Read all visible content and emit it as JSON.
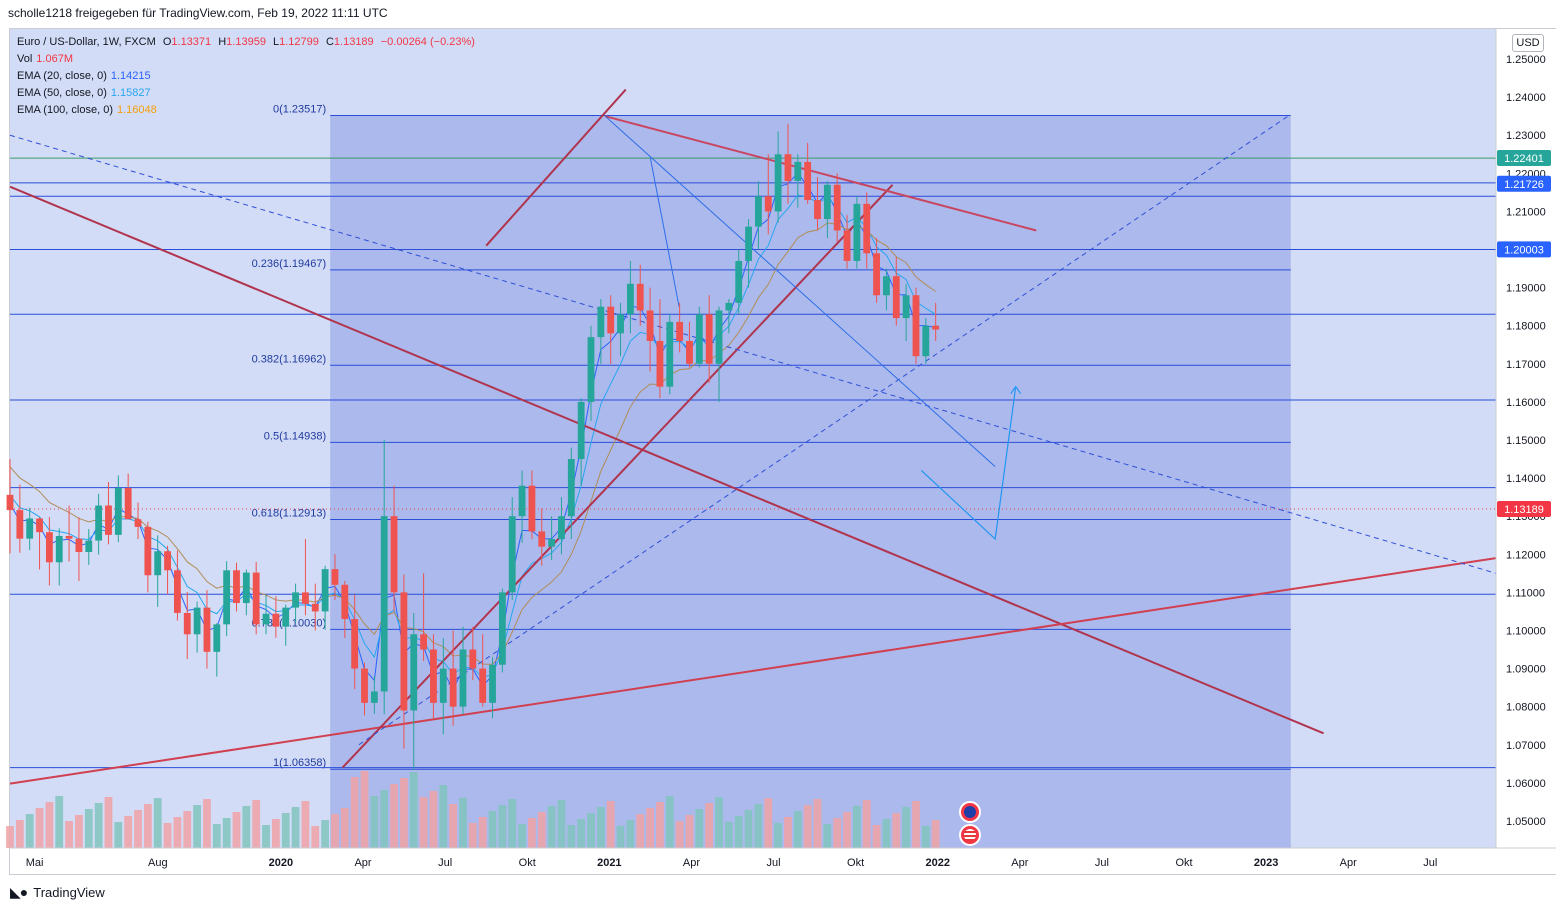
{
  "header": {
    "publisher_line": "scholle1218 freigegeben für TradingView.com, Feb 19, 2022 11:11 UTC"
  },
  "legend": {
    "symbol": "Euro / US-Dollar, 1W, FXCM",
    "ohlc": {
      "o_label": "O",
      "o": "1.13371",
      "h_label": "H",
      "h": "1.13959",
      "l_label": "L",
      "l": "1.12799",
      "c_label": "C",
      "c": "1.13189",
      "change": "−0.00264 (−0.23%)"
    },
    "vol_label": "Vol",
    "vol": "1.067M",
    "ema20_label": "EMA (20, close, 0)",
    "ema20": "1.14215",
    "ema50_label": "EMA (50, close, 0)",
    "ema50": "1.15827",
    "ema100_label": "EMA (100, close, 0)",
    "ema100": "1.16048"
  },
  "currency_button": "USD",
  "footer": {
    "brand": "TradingView"
  },
  "colors": {
    "up": "#26a69a",
    "down": "#ef5350",
    "ema20": "#2962ff",
    "ema50": "#26a6f0",
    "ema100": "#b08d57",
    "fib_box": "#5a6fd6",
    "trendline": "#b0344e",
    "hline": "#2a4ed8",
    "bg": "#d3dcf6",
    "price_label": "#f23645"
  },
  "icons": [
    "eu-flag-event-icon",
    "us-flag-event-icon"
  ],
  "chart_data": {
    "type": "candlestick",
    "timeframe": "1W",
    "y_axis": {
      "labels": [
        "1.25000",
        "1.24000",
        "1.23000",
        "1.22000",
        "1.21000",
        "1.20000",
        "1.19000",
        "1.18000",
        "1.17000",
        "1.16000",
        "1.15000",
        "1.14000",
        "1.13000",
        "1.12000",
        "1.11000",
        "1.10000",
        "1.09000",
        "1.08000",
        "1.07000",
        "1.06000",
        "1.05000"
      ],
      "range": [
        1.045,
        1.255
      ]
    },
    "x_axis": {
      "labels": [
        {
          "t": 0.6,
          "label": "Mai"
        },
        {
          "t": 3.6,
          "label": "Aug"
        },
        {
          "t": 6.6,
          "label": "2020",
          "bold": true
        },
        {
          "t": 8.6,
          "label": "Apr"
        },
        {
          "t": 10.6,
          "label": "Jul"
        },
        {
          "t": 12.6,
          "label": "Okt"
        },
        {
          "t": 14.6,
          "label": "2021",
          "bold": true
        },
        {
          "t": 16.6,
          "label": "Apr"
        },
        {
          "t": 18.6,
          "label": "Jul"
        },
        {
          "t": 20.6,
          "label": "Okt"
        },
        {
          "t": 22.6,
          "label": "2022",
          "bold": true
        },
        {
          "t": 24.6,
          "label": "Apr"
        },
        {
          "t": 26.6,
          "label": "Jul"
        },
        {
          "t": 28.6,
          "label": "Okt"
        },
        {
          "t": 30.6,
          "label": "2023",
          "bold": true
        },
        {
          "t": 32.6,
          "label": "Apr"
        },
        {
          "t": 34.6,
          "label": "Jul"
        }
      ],
      "t_range": [
        0,
        36.2
      ]
    },
    "price_badges": [
      {
        "price": 1.22401,
        "label": "1.22401",
        "color": "#26a69a"
      },
      {
        "price": 1.21726,
        "label": "1.21726",
        "color": "#2962ff"
      },
      {
        "price": 1.20003,
        "label": "1.20003",
        "color": "#2962ff"
      },
      {
        "price": 1.13189,
        "label": "1.13189",
        "color": "#f23645"
      }
    ],
    "fibonacci": {
      "t_start": 7.8,
      "t_end": 31.2,
      "levels": [
        {
          "price": 1.23517,
          "label": "0(1.23517)"
        },
        {
          "price": 1.19467,
          "label": "0.236(1.19467)"
        },
        {
          "price": 1.16962,
          "label": "0.382(1.16962)"
        },
        {
          "price": 1.14938,
          "label": "0.5(1.14938)"
        },
        {
          "price": 1.12913,
          "label": "0.618(1.12913)"
        },
        {
          "price": 1.1003,
          "label": "0.786(1.10030)"
        },
        {
          "price": 1.06358,
          "label": "1(1.06358)"
        }
      ]
    },
    "horizontal_lines": [
      1.2175,
      1.214,
      1.2,
      1.183,
      1.1605,
      1.1375,
      1.1095,
      1.064
    ],
    "green_line": 1.224,
    "trendlines": [
      {
        "t1": 0.0,
        "p1": 1.2165,
        "t2": 32.0,
        "p2": 1.073,
        "color": "#b0344e"
      },
      {
        "t1": 0.0,
        "p1": 1.0598,
        "t2": 36.2,
        "p2": 1.119,
        "color": "#d04050"
      },
      {
        "t1": 8.1,
        "p1": 1.064,
        "t2": 21.5,
        "p2": 1.217,
        "color": "#b0344e"
      },
      {
        "t1": 11.6,
        "p1": 1.201,
        "t2": 15.0,
        "p2": 1.242,
        "color": "#b0344e"
      },
      {
        "t1": 14.5,
        "p1": 1.235,
        "t2": 25.0,
        "p2": 1.205,
        "color": "#c84660"
      }
    ],
    "dashed_lines": [
      {
        "t1": 0.0,
        "p1": 1.23,
        "t2": 36.2,
        "p2": 1.115
      },
      {
        "t1": 8.5,
        "p1": 1.07,
        "t2": 31.2,
        "p2": 1.2355
      }
    ],
    "forecast_path": [
      [
        22.2,
        1.142
      ],
      [
        24.0,
        1.124
      ],
      [
        24.5,
        1.164
      ]
    ],
    "annotation_lines": [
      {
        "t1": 14.5,
        "p1": 1.235,
        "t2": 24.0,
        "p2": 1.143
      },
      {
        "t1": 15.6,
        "p1": 1.224,
        "t2": 16.3,
        "p2": 1.185
      }
    ],
    "candles": [
      {
        "t": 0.0,
        "o": 1.1356,
        "h": 1.145,
        "l": 1.1202,
        "c": 1.1316
      },
      {
        "t": 0.23,
        "o": 1.1316,
        "h": 1.1383,
        "l": 1.1204,
        "c": 1.1241
      },
      {
        "t": 0.46,
        "o": 1.1241,
        "h": 1.1322,
        "l": 1.1211,
        "c": 1.1294
      },
      {
        "t": 0.69,
        "o": 1.1294,
        "h": 1.1297,
        "l": 1.116,
        "c": 1.1258
      },
      {
        "t": 0.92,
        "o": 1.1258,
        "h": 1.1298,
        "l": 1.1118,
        "c": 1.1179
      },
      {
        "t": 1.15,
        "o": 1.1179,
        "h": 1.1268,
        "l": 1.1118,
        "c": 1.1248
      },
      {
        "t": 1.38,
        "o": 1.1248,
        "h": 1.1328,
        "l": 1.1181,
        "c": 1.1241
      },
      {
        "t": 1.61,
        "o": 1.1241,
        "h": 1.1297,
        "l": 1.113,
        "c": 1.1206
      },
      {
        "t": 1.84,
        "o": 1.1206,
        "h": 1.1266,
        "l": 1.1172,
        "c": 1.1236
      },
      {
        "t": 2.07,
        "o": 1.1236,
        "h": 1.1359,
        "l": 1.1199,
        "c": 1.1328
      },
      {
        "t": 2.3,
        "o": 1.1328,
        "h": 1.139,
        "l": 1.1226,
        "c": 1.1251
      },
      {
        "t": 2.53,
        "o": 1.1251,
        "h": 1.1407,
        "l": 1.1232,
        "c": 1.1374
      },
      {
        "t": 2.76,
        "o": 1.1374,
        "h": 1.1412,
        "l": 1.1295,
        "c": 1.1292
      },
      {
        "t": 2.99,
        "o": 1.1292,
        "h": 1.1336,
        "l": 1.124,
        "c": 1.1272
      },
      {
        "t": 3.22,
        "o": 1.1272,
        "h": 1.1286,
        "l": 1.11,
        "c": 1.1145
      },
      {
        "t": 3.45,
        "o": 1.1145,
        "h": 1.125,
        "l": 1.1062,
        "c": 1.1208
      },
      {
        "t": 3.68,
        "o": 1.1208,
        "h": 1.1222,
        "l": 1.1095,
        "c": 1.1158
      },
      {
        "t": 3.91,
        "o": 1.1158,
        "h": 1.121,
        "l": 1.1026,
        "c": 1.1046
      },
      {
        "t": 4.14,
        "o": 1.1046,
        "h": 1.1101,
        "l": 1.0925,
        "c": 1.099
      },
      {
        "t": 4.37,
        "o": 1.099,
        "h": 1.1076,
        "l": 1.0942,
        "c": 1.106
      },
      {
        "t": 4.6,
        "o": 1.106,
        "h": 1.1106,
        "l": 1.09,
        "c": 1.0944
      },
      {
        "t": 4.83,
        "o": 1.0944,
        "h": 1.1019,
        "l": 1.0879,
        "c": 1.1016
      },
      {
        "t": 5.06,
        "o": 1.1016,
        "h": 1.1182,
        "l": 1.0985,
        "c": 1.1158
      },
      {
        "t": 5.29,
        "o": 1.1158,
        "h": 1.1178,
        "l": 1.105,
        "c": 1.1072
      },
      {
        "t": 5.52,
        "o": 1.1072,
        "h": 1.116,
        "l": 1.104,
        "c": 1.1152
      },
      {
        "t": 5.75,
        "o": 1.1152,
        "h": 1.118,
        "l": 1.099,
        "c": 1.1016
      },
      {
        "t": 5.98,
        "o": 1.1016,
        "h": 1.1092,
        "l": 1.099,
        "c": 1.1044
      },
      {
        "t": 6.21,
        "o": 1.1044,
        "h": 1.109,
        "l": 1.0981,
        "c": 1.101
      },
      {
        "t": 6.44,
        "o": 1.101,
        "h": 1.1068,
        "l": 1.096,
        "c": 1.106
      },
      {
        "t": 6.67,
        "o": 1.106,
        "h": 1.1123,
        "l": 1.102,
        "c": 1.11
      },
      {
        "t": 6.9,
        "o": 1.11,
        "h": 1.124,
        "l": 1.104,
        "c": 1.107
      },
      {
        "t": 7.13,
        "o": 1.107,
        "h": 1.1123,
        "l": 1.1,
        "c": 1.105
      },
      {
        "t": 7.36,
        "o": 1.105,
        "h": 1.117,
        "l": 1.1002,
        "c": 1.1161
      },
      {
        "t": 7.59,
        "o": 1.1161,
        "h": 1.12,
        "l": 1.108,
        "c": 1.112
      },
      {
        "t": 7.82,
        "o": 1.112,
        "h": 1.113,
        "l": 1.098,
        "c": 1.103
      },
      {
        "t": 8.05,
        "o": 1.103,
        "h": 1.1094,
        "l": 1.0846,
        "c": 1.09
      },
      {
        "t": 8.28,
        "o": 1.09,
        "h": 1.0915,
        "l": 1.0777,
        "c": 1.081
      },
      {
        "t": 8.51,
        "o": 1.081,
        "h": 1.088,
        "l": 1.0781,
        "c": 1.084
      },
      {
        "t": 8.74,
        "o": 1.084,
        "h": 1.15,
        "l": 1.078,
        "c": 1.13
      },
      {
        "t": 8.97,
        "o": 1.13,
        "h": 1.138,
        "l": 1.105,
        "c": 1.11
      },
      {
        "t": 9.2,
        "o": 1.11,
        "h": 1.1147,
        "l": 1.069,
        "c": 1.079
      },
      {
        "t": 9.43,
        "o": 1.079,
        "h": 1.1046,
        "l": 1.0635,
        "c": 1.099
      },
      {
        "t": 9.66,
        "o": 1.099,
        "h": 1.115,
        "l": 1.092,
        "c": 1.095
      },
      {
        "t": 9.89,
        "o": 1.095,
        "h": 1.099,
        "l": 1.077,
        "c": 1.081
      },
      {
        "t": 10.12,
        "o": 1.081,
        "h": 1.098,
        "l": 1.0727,
        "c": 1.09
      },
      {
        "t": 10.35,
        "o": 1.09,
        "h": 1.1,
        "l": 1.075,
        "c": 1.08
      },
      {
        "t": 10.58,
        "o": 1.08,
        "h": 1.101,
        "l": 1.078,
        "c": 1.095
      },
      {
        "t": 10.81,
        "o": 1.095,
        "h": 1.101,
        "l": 1.087,
        "c": 1.09
      },
      {
        "t": 11.04,
        "o": 1.09,
        "h": 1.099,
        "l": 1.08,
        "c": 1.081
      },
      {
        "t": 11.27,
        "o": 1.081,
        "h": 1.093,
        "l": 1.077,
        "c": 1.091
      },
      {
        "t": 11.5,
        "o": 1.091,
        "h": 1.111,
        "l": 1.089,
        "c": 1.11
      },
      {
        "t": 11.73,
        "o": 1.11,
        "h": 1.135,
        "l": 1.108,
        "c": 1.13
      },
      {
        "t": 11.96,
        "o": 1.13,
        "h": 1.142,
        "l": 1.123,
        "c": 1.138
      },
      {
        "t": 12.19,
        "o": 1.138,
        "h": 1.142,
        "l": 1.124,
        "c": 1.126
      },
      {
        "t": 12.42,
        "o": 1.126,
        "h": 1.132,
        "l": 1.117,
        "c": 1.122
      },
      {
        "t": 12.65,
        "o": 1.122,
        "h": 1.13,
        "l": 1.1185,
        "c": 1.124
      },
      {
        "t": 12.88,
        "o": 1.124,
        "h": 1.135,
        "l": 1.12,
        "c": 1.13
      },
      {
        "t": 13.11,
        "o": 1.13,
        "h": 1.148,
        "l": 1.124,
        "c": 1.145
      },
      {
        "t": 13.34,
        "o": 1.145,
        "h": 1.161,
        "l": 1.138,
        "c": 1.16
      },
      {
        "t": 13.57,
        "o": 1.16,
        "h": 1.18,
        "l": 1.155,
        "c": 1.177
      },
      {
        "t": 13.8,
        "o": 1.177,
        "h": 1.187,
        "l": 1.17,
        "c": 1.185
      },
      {
        "t": 14.03,
        "o": 1.185,
        "h": 1.188,
        "l": 1.17,
        "c": 1.178
      },
      {
        "t": 14.26,
        "o": 1.178,
        "h": 1.186,
        "l": 1.172,
        "c": 1.183
      },
      {
        "t": 14.49,
        "o": 1.183,
        "h": 1.197,
        "l": 1.178,
        "c": 1.191
      },
      {
        "t": 14.72,
        "o": 1.191,
        "h": 1.196,
        "l": 1.18,
        "c": 1.184
      },
      {
        "t": 14.95,
        "o": 1.184,
        "h": 1.19,
        "l": 1.168,
        "c": 1.176
      },
      {
        "t": 15.18,
        "o": 1.176,
        "h": 1.187,
        "l": 1.161,
        "c": 1.164
      },
      {
        "t": 15.41,
        "o": 1.164,
        "h": 1.183,
        "l": 1.162,
        "c": 1.181
      },
      {
        "t": 15.64,
        "o": 1.181,
        "h": 1.186,
        "l": 1.173,
        "c": 1.176
      },
      {
        "t": 15.87,
        "o": 1.176,
        "h": 1.181,
        "l": 1.169,
        "c": 1.17
      },
      {
        "t": 16.1,
        "o": 1.17,
        "h": 1.185,
        "l": 1.169,
        "c": 1.183
      },
      {
        "t": 16.33,
        "o": 1.183,
        "h": 1.188,
        "l": 1.165,
        "c": 1.17
      },
      {
        "t": 16.56,
        "o": 1.17,
        "h": 1.185,
        "l": 1.16,
        "c": 1.184
      },
      {
        "t": 16.79,
        "o": 1.184,
        "h": 1.187,
        "l": 1.178,
        "c": 1.186
      },
      {
        "t": 17.02,
        "o": 1.186,
        "h": 1.2,
        "l": 1.183,
        "c": 1.197
      },
      {
        "t": 17.25,
        "o": 1.197,
        "h": 1.208,
        "l": 1.19,
        "c": 1.206
      },
      {
        "t": 17.48,
        "o": 1.206,
        "h": 1.218,
        "l": 1.2,
        "c": 1.214
      },
      {
        "t": 17.71,
        "o": 1.214,
        "h": 1.225,
        "l": 1.204,
        "c": 1.21
      },
      {
        "t": 17.94,
        "o": 1.21,
        "h": 1.231,
        "l": 1.207,
        "c": 1.225
      },
      {
        "t": 18.17,
        "o": 1.225,
        "h": 1.233,
        "l": 1.212,
        "c": 1.218
      },
      {
        "t": 18.4,
        "o": 1.218,
        "h": 1.225,
        "l": 1.211,
        "c": 1.223
      },
      {
        "t": 18.63,
        "o": 1.223,
        "h": 1.228,
        "l": 1.212,
        "c": 1.213
      },
      {
        "t": 18.86,
        "o": 1.213,
        "h": 1.219,
        "l": 1.205,
        "c": 1.208
      },
      {
        "t": 19.09,
        "o": 1.208,
        "h": 1.218,
        "l": 1.203,
        "c": 1.217
      },
      {
        "t": 19.32,
        "o": 1.217,
        "h": 1.22,
        "l": 1.202,
        "c": 1.205
      },
      {
        "t": 19.55,
        "o": 1.205,
        "h": 1.209,
        "l": 1.195,
        "c": 1.197
      },
      {
        "t": 19.78,
        "o": 1.197,
        "h": 1.214,
        "l": 1.195,
        "c": 1.212
      },
      {
        "t": 20.01,
        "o": 1.212,
        "h": 1.215,
        "l": 1.195,
        "c": 1.199
      },
      {
        "t": 20.24,
        "o": 1.199,
        "h": 1.203,
        "l": 1.186,
        "c": 1.188
      },
      {
        "t": 20.47,
        "o": 1.188,
        "h": 1.195,
        "l": 1.184,
        "c": 1.193
      },
      {
        "t": 20.7,
        "o": 1.193,
        "h": 1.198,
        "l": 1.18,
        "c": 1.182
      },
      {
        "t": 20.93,
        "o": 1.182,
        "h": 1.191,
        "l": 1.176,
        "c": 1.188
      },
      {
        "t": 21.16,
        "o": 1.188,
        "h": 1.19,
        "l": 1.17,
        "c": 1.172
      },
      {
        "t": 21.39,
        "o": 1.172,
        "h": 1.182,
        "l": 1.17,
        "c": 1.18
      },
      {
        "t": 21.62,
        "o": 1.18,
        "h": 1.186,
        "l": 1.176,
        "c": 1.179
      }
    ]
  }
}
